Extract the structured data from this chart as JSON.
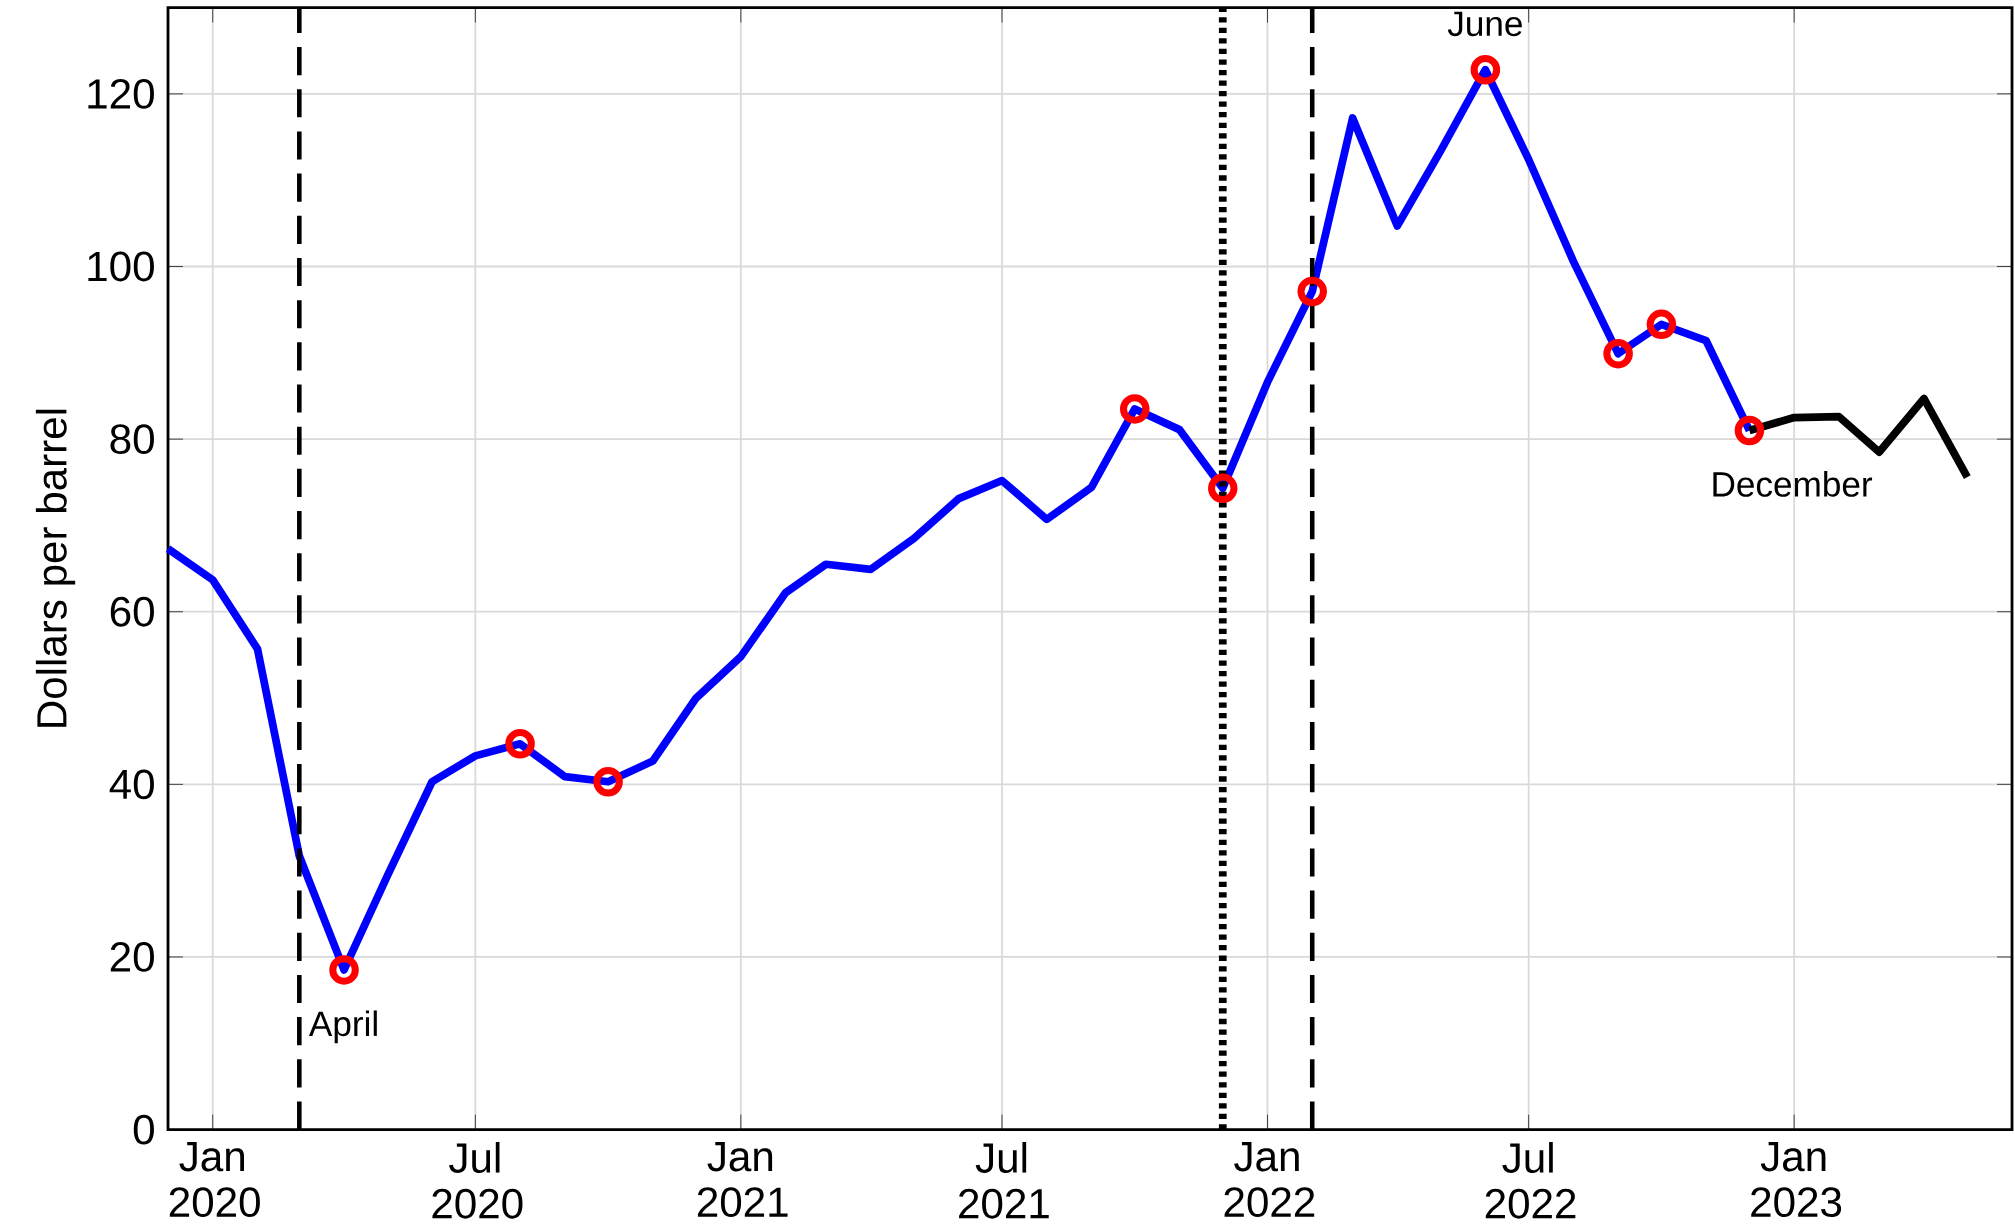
{
  "chart_data": {
    "type": "line",
    "ylabel": "Dollars per barrel",
    "xlim": [
      "2019-12",
      "2023-06"
    ],
    "ylim": [
      0,
      130
    ],
    "xticks": [
      {
        "value": "2020-01",
        "label": "Jan 2020"
      },
      {
        "value": "2020-07",
        "label": "Jul 2020"
      },
      {
        "value": "2021-01",
        "label": "Jan 2021"
      },
      {
        "value": "2021-07",
        "label": "Jul 2021"
      },
      {
        "value": "2022-01",
        "label": "Jan 2022"
      },
      {
        "value": "2022-07",
        "label": "Jul 2022"
      },
      {
        "value": "2023-01",
        "label": "Jan 2023"
      }
    ],
    "yticks": [
      0,
      20,
      40,
      60,
      80,
      100,
      120
    ],
    "grid": true,
    "series": [
      {
        "color": "#0000ff",
        "x": [
          "2019-12",
          "2020-01",
          "2020-02",
          "2020-03",
          "2020-04",
          "2020-05",
          "2020-06",
          "2020-07",
          "2020-08",
          "2020-09",
          "2020-10",
          "2020-11",
          "2020-12",
          "2021-01",
          "2021-02",
          "2021-03",
          "2021-04",
          "2021-05",
          "2021-06",
          "2021-07",
          "2021-08",
          "2021-09",
          "2021-10",
          "2021-11",
          "2021-12",
          "2022-01",
          "2022-02",
          "2022-03",
          "2022-04",
          "2022-05",
          "2022-06",
          "2022-07",
          "2022-08",
          "2022-09",
          "2022-10",
          "2022-11",
          "2022-12"
        ],
        "values": [
          67.3,
          63.7,
          55.7,
          31.7,
          18.5,
          29.4,
          40.3,
          43.3,
          44.7,
          40.9,
          40.3,
          42.7,
          50.0,
          54.8,
          62.2,
          65.5,
          64.9,
          68.5,
          73.1,
          75.2,
          70.7,
          74.4,
          83.5,
          81.1,
          74.3,
          86.6,
          97.1,
          117.2,
          104.7,
          113.4,
          122.8,
          112.4,
          100.6,
          89.9,
          93.3,
          91.4,
          81.0
        ]
      },
      {
        "color": "#000000",
        "x": [
          "2022-12",
          "2023-01",
          "2023-02",
          "2023-03",
          "2023-04",
          "2023-05"
        ],
        "values": [
          81.0,
          82.5,
          82.6,
          78.5,
          84.7,
          75.6
        ]
      },
      {
        "type": "scatter",
        "color": "#ff0000",
        "marker": "circle",
        "x": [
          "2020-04",
          "2020-08",
          "2020-10",
          "2021-10",
          "2021-12",
          "2022-02",
          "2022-06",
          "2022-09",
          "2022-10",
          "2022-12"
        ],
        "values": [
          18.5,
          44.7,
          40.3,
          83.5,
          74.3,
          97.1,
          122.8,
          89.9,
          93.3,
          81.0
        ]
      }
    ],
    "ref_lines": [
      {
        "axis": "x",
        "value": "2020-03",
        "line_style": "dashed",
        "color": "#000000"
      },
      {
        "axis": "x",
        "value": "2021-12",
        "line_style": "dotted",
        "color": "#000000"
      },
      {
        "axis": "x",
        "value": "2022-02",
        "line_style": "dashed",
        "color": "#000000"
      }
    ],
    "annotations": [
      {
        "text": "April",
        "x": "2020-04",
        "y": 18.5
      },
      {
        "text": "June",
        "x": "2022-06",
        "y": 122.8
      },
      {
        "text": "December",
        "x": "2022-12",
        "y": 81.0
      }
    ]
  }
}
